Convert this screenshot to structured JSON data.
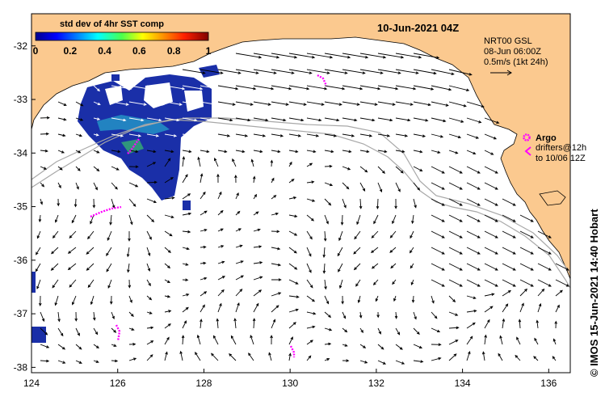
{
  "title": "10-Jun-2021 04Z",
  "colorbar": {
    "title": "std dev of 4hr SST comp",
    "ticks": [
      "0",
      "0.2",
      "0.4",
      "0.6",
      "0.8",
      "1"
    ],
    "range": [
      0,
      1
    ]
  },
  "info": {
    "line1": "NRT00 GSL",
    "line2": "08-Jun 06:00Z",
    "line3": "0.5m/s (1kt 24h)"
  },
  "argo": {
    "label": "Argo",
    "line1": "drifters@12h",
    "line2": "to 10/06 12Z"
  },
  "credit": "© IMOS 15-Jun-2021 14:40 Hobart",
  "axes": {
    "lon_ticks": [
      "124",
      "126",
      "128",
      "130",
      "132",
      "134",
      "136"
    ],
    "lat_ticks": [
      "-32",
      "-33",
      "-34",
      "-35",
      "-36",
      "-37",
      "-38"
    ],
    "lon_range": [
      124,
      136.5
    ],
    "lat_range": [
      -31.4,
      -38.1
    ]
  },
  "colors": {
    "land": "#fbc98f",
    "ocean": "#ffffff",
    "isobath": "#a8a8a8",
    "argo": "#ff00ff",
    "sst_low": "#1a2fa8",
    "sst_mid": "#29c9d6"
  }
}
